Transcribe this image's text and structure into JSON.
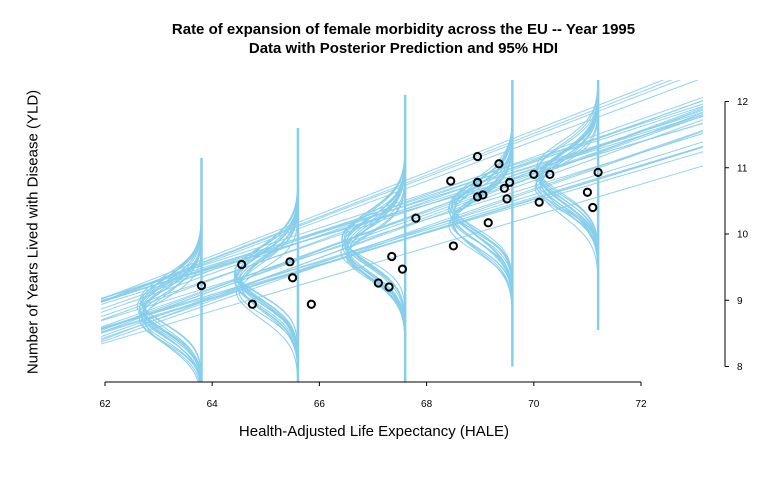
{
  "chart_data": {
    "type": "scatter",
    "title": "Rate of expansion of female morbidity across the EU -- Year 1995",
    "subtitle": "Data with Posterior Prediction and 95% HDI",
    "xlabel": "Health-Adjusted Life Expectancy (HALE)",
    "ylabel": "Number of Years Lived with Disease (YLD)",
    "xlim": [
      62,
      72
    ],
    "ylim": [
      8,
      12
    ],
    "x_ticks": [
      "62",
      "64",
      "66",
      "68",
      "70",
      "72"
    ],
    "y_ticks": [
      "8",
      "9",
      "10",
      "11",
      "12"
    ],
    "y_axis_side": "right",
    "grid": false,
    "points": [
      {
        "x": 63.8,
        "y": 9.22
      },
      {
        "x": 64.55,
        "y": 9.54
      },
      {
        "x": 64.75,
        "y": 8.94
      },
      {
        "x": 65.45,
        "y": 9.58
      },
      {
        "x": 65.5,
        "y": 9.34
      },
      {
        "x": 65.85,
        "y": 8.94
      },
      {
        "x": 67.1,
        "y": 9.26
      },
      {
        "x": 67.3,
        "y": 9.2
      },
      {
        "x": 67.35,
        "y": 9.66
      },
      {
        "x": 67.55,
        "y": 9.47
      },
      {
        "x": 67.8,
        "y": 10.24
      },
      {
        "x": 68.45,
        "y": 10.8
      },
      {
        "x": 68.5,
        "y": 9.82
      },
      {
        "x": 68.95,
        "y": 11.17
      },
      {
        "x": 68.95,
        "y": 10.78
      },
      {
        "x": 68.95,
        "y": 10.56
      },
      {
        "x": 69.05,
        "y": 10.59
      },
      {
        "x": 69.15,
        "y": 10.17
      },
      {
        "x": 69.35,
        "y": 11.06
      },
      {
        "x": 69.45,
        "y": 10.69
      },
      {
        "x": 69.5,
        "y": 10.53
      },
      {
        "x": 69.55,
        "y": 10.78
      },
      {
        "x": 70.0,
        "y": 10.9
      },
      {
        "x": 70.1,
        "y": 10.48
      },
      {
        "x": 70.3,
        "y": 10.9
      },
      {
        "x": 71.0,
        "y": 10.63
      },
      {
        "x": 71.1,
        "y": 10.4
      },
      {
        "x": 71.2,
        "y": 10.93
      }
    ],
    "posterior_lines": {
      "count": 30,
      "intercept_at_62": {
        "min": 8.35,
        "max": 9.05
      },
      "slope": {
        "min": 0.235,
        "max": 0.32
      }
    },
    "hdi_densities": {
      "x_positions": [
        63.8,
        65.6,
        67.6,
        69.6,
        71.2
      ],
      "center_y": [
        8.85,
        9.3,
        9.8,
        10.3,
        10.85
      ],
      "sd": {
        "min": 0.33,
        "max": 0.42
      },
      "count": 16
    },
    "colors": {
      "posterior": "#87ceeb",
      "points": "#000000",
      "axis": "#000000"
    }
  }
}
